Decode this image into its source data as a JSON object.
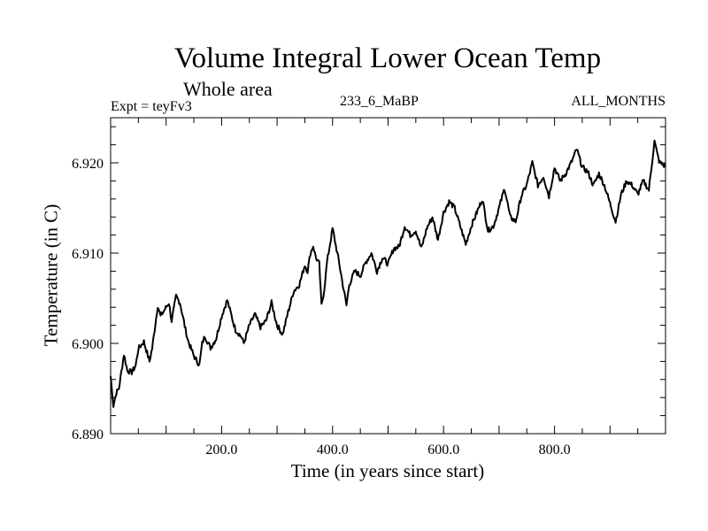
{
  "chart_data": {
    "type": "line",
    "title": "Volume Integral Lower Ocean Temp",
    "subtitle": "Whole area",
    "left_label": "Expt = teyFv3",
    "center_label": "233_6_MaBP",
    "right_label": "ALL_MONTHS",
    "xlabel": "Time (in years since start)",
    "ylabel": "Temperature (in C)",
    "xlim": [
      0,
      1000
    ],
    "ylim": [
      6.89,
      6.925
    ],
    "x_ticks": [
      200,
      400,
      600,
      800
    ],
    "x_tick_labels": [
      "200.0",
      "400.0",
      "600.0",
      "800.0"
    ],
    "x_minor_step": 50,
    "y_ticks": [
      6.89,
      6.9,
      6.91,
      6.92
    ],
    "y_tick_labels": [
      "6.890",
      "6.900",
      "6.910",
      "6.920"
    ],
    "y_minor_step": 0.002,
    "grid": false,
    "series": [
      {
        "name": "Volume Integral Lower Ocean Temp",
        "color": "#000000",
        "x": [
          0,
          5,
          10,
          15,
          24,
          30,
          38,
          45,
          50,
          60,
          70,
          75,
          85,
          90,
          95,
          105,
          110,
          118,
          125,
          135,
          140,
          150,
          160,
          165,
          170,
          180,
          190,
          200,
          210,
          218,
          225,
          235,
          240,
          250,
          260,
          270,
          280,
          290,
          300,
          310,
          320,
          330,
          340,
          350,
          355,
          360,
          365,
          370,
          376,
          380,
          385,
          390,
          400,
          410,
          420,
          425,
          430,
          440,
          450,
          460,
          470,
          480,
          490,
          500,
          510,
          520,
          530,
          540,
          550,
          560,
          570,
          580,
          590,
          600,
          610,
          620,
          630,
          640,
          650,
          660,
          670,
          680,
          690,
          700,
          710,
          720,
          730,
          740,
          750,
          760,
          770,
          780,
          790,
          800,
          810,
          820,
          830,
          840,
          850,
          860,
          870,
          880,
          890,
          900,
          910,
          920,
          930,
          940,
          950,
          960,
          970,
          980,
          985,
          990,
          1000
        ],
        "values": [
          6.8964,
          6.8931,
          6.8945,
          6.895,
          6.8988,
          6.897,
          6.8968,
          6.8975,
          6.8994,
          6.9002,
          6.898,
          6.8995,
          6.9042,
          6.903,
          6.9035,
          6.9045,
          6.9025,
          6.9052,
          6.9045,
          6.9015,
          6.9002,
          6.8986,
          6.8976,
          6.9,
          6.9008,
          6.8995,
          6.9005,
          6.903,
          6.9048,
          6.903,
          6.9015,
          6.9008,
          6.9,
          6.902,
          6.9032,
          6.9018,
          6.9025,
          6.9045,
          6.902,
          6.901,
          6.9035,
          6.9058,
          6.9065,
          6.9087,
          6.908,
          6.91,
          6.9108,
          6.9095,
          6.9088,
          6.9042,
          6.906,
          6.909,
          6.9127,
          6.9095,
          6.906,
          6.9042,
          6.9065,
          6.908,
          6.9075,
          6.909,
          6.91,
          6.908,
          6.9095,
          6.9088,
          6.9105,
          6.9107,
          6.913,
          6.912,
          6.9125,
          6.9105,
          6.9128,
          6.914,
          6.9115,
          6.9145,
          6.9157,
          6.915,
          6.913,
          6.911,
          6.913,
          6.9145,
          6.916,
          6.9125,
          6.913,
          6.915,
          6.9172,
          6.914,
          6.9135,
          6.9163,
          6.9176,
          6.92,
          6.9175,
          6.9185,
          6.9163,
          6.9195,
          6.918,
          6.9188,
          6.92,
          6.9215,
          6.9195,
          6.919,
          6.9175,
          6.9188,
          6.9175,
          6.9155,
          6.9135,
          6.9165,
          6.918,
          6.9175,
          6.9165,
          6.918,
          6.917,
          6.9224,
          6.921,
          6.92,
          6.9196
        ]
      }
    ]
  }
}
